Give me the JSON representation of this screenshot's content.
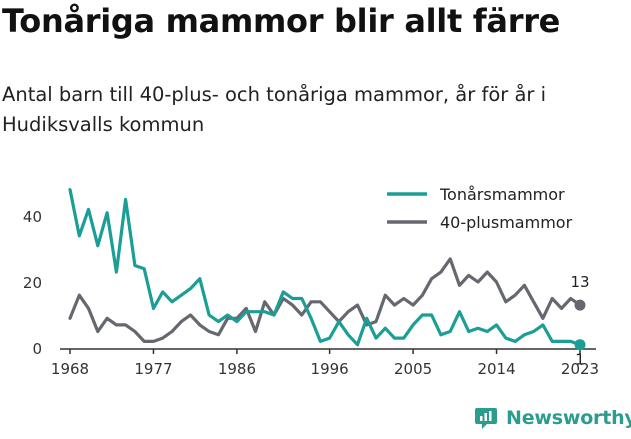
{
  "header": {
    "title": "Tonåriga mammor blir allt färre",
    "subtitle": "Antal barn till 40-plus- och tonåriga mammor, år för år i Hudiksvalls kommun"
  },
  "brand": {
    "name": "Newsworthy"
  },
  "chart_data": {
    "type": "line",
    "title": "Tonåriga mammor blir allt färre",
    "subtitle": "Antal barn till 40-plus- och tonåriga mammor, år för år i Hudiksvalls kommun",
    "xlabel": "",
    "ylabel": "",
    "xlim": [
      1968,
      2023
    ],
    "ylim": [
      0,
      50
    ],
    "x_ticks": [
      "1968",
      "1977",
      "1986",
      "1996",
      "2005",
      "2014",
      "2023"
    ],
    "y_ticks": [
      "0",
      "20",
      "40"
    ],
    "grid": false,
    "legend_position": "top-right",
    "x": [
      1968,
      1969,
      1970,
      1971,
      1972,
      1973,
      1974,
      1975,
      1976,
      1977,
      1978,
      1979,
      1980,
      1981,
      1982,
      1983,
      1984,
      1985,
      1986,
      1987,
      1988,
      1989,
      1990,
      1991,
      1992,
      1993,
      1994,
      1995,
      1996,
      1997,
      1998,
      1999,
      2000,
      2001,
      2002,
      2003,
      2004,
      2005,
      2006,
      2007,
      2008,
      2009,
      2010,
      2011,
      2012,
      2013,
      2014,
      2015,
      2016,
      2017,
      2018,
      2019,
      2020,
      2021,
      2022,
      2023
    ],
    "series": [
      {
        "name": "Tonårsmammor",
        "color": "#1a9e96",
        "values": [
          48,
          34,
          42,
          31,
          41,
          23,
          45,
          25,
          24,
          12,
          17,
          14,
          16,
          18,
          21,
          10,
          8,
          10,
          8,
          11,
          11,
          11,
          10,
          17,
          15,
          15,
          9,
          2,
          3,
          8,
          4,
          1,
          9,
          3,
          6,
          3,
          3,
          7,
          10,
          10,
          4,
          5,
          11,
          5,
          6,
          5,
          7,
          3,
          2,
          4,
          5,
          7,
          2,
          2,
          2,
          1
        ],
        "end_label": "1"
      },
      {
        "name": "40-plusmammor",
        "color": "#666870",
        "values": [
          9,
          16,
          12,
          5,
          9,
          7,
          7,
          5,
          2,
          2,
          3,
          5,
          8,
          10,
          7,
          5,
          4,
          9,
          9,
          12,
          5,
          14,
          10,
          15,
          13,
          10,
          14,
          14,
          11,
          8,
          11,
          13,
          7,
          8,
          16,
          13,
          15,
          13,
          16,
          21,
          23,
          27,
          19,
          22,
          20,
          23,
          20,
          14,
          16,
          19,
          14,
          9,
          15,
          12,
          15,
          13
        ],
        "end_label": "13"
      }
    ]
  }
}
